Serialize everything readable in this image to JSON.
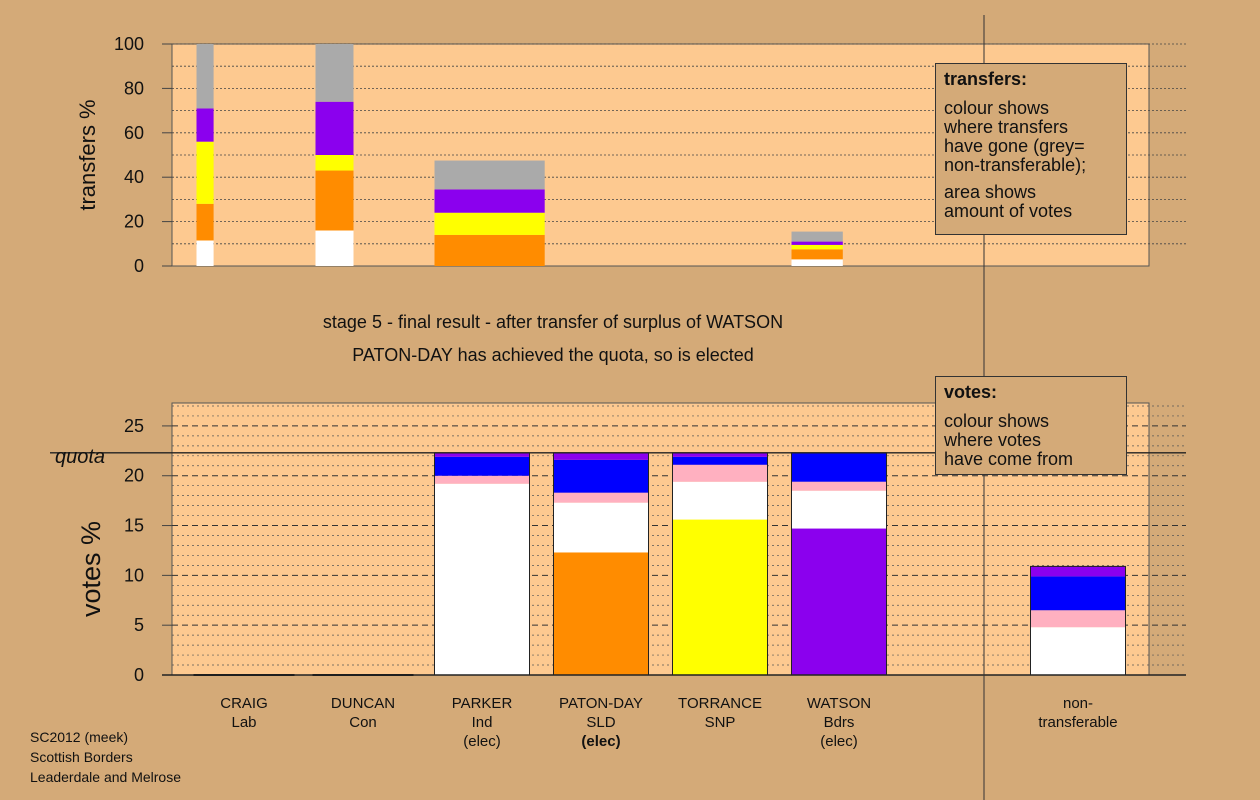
{
  "header": {
    "stage_line": "stage 5 - final result - after transfer of surplus of WATSON",
    "elected_line": "PATON-DAY has achieved the quota, so is elected"
  },
  "legend_transfers": {
    "title": "transfers:",
    "lines": [
      "colour shows",
      "where transfers",
      "have gone (grey=",
      "non-transferable);"
    ],
    "lines2": [
      "area shows",
      "amount of votes"
    ]
  },
  "legend_votes": {
    "title": "votes:",
    "lines": [
      "colour shows",
      "where votes",
      "have come from"
    ]
  },
  "footer": {
    "lines": [
      "SC2012 (meek)",
      "Scottish Borders",
      "Leaderdale and Melrose"
    ]
  },
  "colors": {
    "background": "#d4aa78",
    "plot_bg": "#fdc990",
    "white": "#ffffff",
    "orange": "#ff8c00",
    "yellow": "#ffff00",
    "purple": "#8b00ee",
    "grey": "#aaaaaa",
    "pink": "#ffb0c0",
    "blue": "#0000ff"
  },
  "chart_data": [
    {
      "type": "bar",
      "chart": "transfers",
      "ylabel": "transfers %",
      "ylim": [
        0,
        100
      ],
      "yticks": [
        0,
        20,
        40,
        60,
        80,
        100
      ],
      "bars": [
        {
          "slot": 0,
          "width": 0.18,
          "segments": [
            {
              "color": "white",
              "from": 0,
              "to": 11.5
            },
            {
              "color": "orange",
              "from": 11.5,
              "to": 28
            },
            {
              "color": "yellow",
              "from": 28,
              "to": 56
            },
            {
              "color": "purple",
              "from": 56,
              "to": 71
            },
            {
              "color": "grey",
              "from": 71,
              "to": 100
            }
          ]
        },
        {
          "slot": 1,
          "width": 0.4,
          "segments": [
            {
              "color": "white",
              "from": 0,
              "to": 16
            },
            {
              "color": "orange",
              "from": 16,
              "to": 43
            },
            {
              "color": "yellow",
              "from": 43,
              "to": 50
            },
            {
              "color": "purple",
              "from": 50,
              "to": 74
            },
            {
              "color": "grey",
              "from": 74,
              "to": 100
            }
          ]
        },
        {
          "slot": 2,
          "width": 1.16,
          "segments": [
            {
              "color": "orange",
              "from": 0,
              "to": 14
            },
            {
              "color": "yellow",
              "from": 14,
              "to": 24
            },
            {
              "color": "purple",
              "from": 24,
              "to": 34.5
            },
            {
              "color": "grey",
              "from": 34.5,
              "to": 47.5
            }
          ]
        },
        {
          "slot": 5,
          "width": 0.54,
          "segments": [
            {
              "color": "white",
              "from": 0,
              "to": 3
            },
            {
              "color": "orange",
              "from": 3,
              "to": 7.5
            },
            {
              "color": "yellow",
              "from": 7.5,
              "to": 9.5
            },
            {
              "color": "purple",
              "from": 9.5,
              "to": 11
            },
            {
              "color": "grey",
              "from": 11,
              "to": 15.5
            }
          ]
        }
      ]
    },
    {
      "type": "bar",
      "chart": "votes",
      "ylabel": "votes %",
      "ylim": [
        0,
        27.3
      ],
      "yticks": [
        0,
        5,
        10,
        15,
        20,
        25
      ],
      "quota": 22.3,
      "quota_label": "quota",
      "candidates": [
        {
          "name": "CRAIG",
          "party": "Lab",
          "status": "",
          "status_bold": false,
          "slot": 0,
          "segments": []
        },
        {
          "name": "DUNCAN",
          "party": "Con",
          "status": "",
          "status_bold": false,
          "slot": 1,
          "segments": []
        },
        {
          "name": "PARKER",
          "party": "Ind",
          "status": "(elec)",
          "status_bold": false,
          "slot": 2,
          "segments": [
            {
              "color": "white",
              "from": 0,
              "to": 19.2
            },
            {
              "color": "pink",
              "from": 19.2,
              "to": 20
            },
            {
              "color": "blue",
              "from": 20,
              "to": 21.9
            },
            {
              "color": "purple",
              "from": 21.9,
              "to": 22.3
            }
          ]
        },
        {
          "name": "PATON-DAY",
          "party": "SLD",
          "status": "(elec)",
          "status_bold": true,
          "slot": 3,
          "segments": [
            {
              "color": "orange",
              "from": 0,
              "to": 12.3
            },
            {
              "color": "white",
              "from": 12.3,
              "to": 17.3
            },
            {
              "color": "pink",
              "from": 17.3,
              "to": 18.3
            },
            {
              "color": "blue",
              "from": 18.3,
              "to": 21.6
            },
            {
              "color": "purple",
              "from": 21.6,
              "to": 22.3
            }
          ]
        },
        {
          "name": "TORRANCE",
          "party": "SNP",
          "status": "",
          "status_bold": false,
          "slot": 4,
          "segments": [
            {
              "color": "yellow",
              "from": 0,
              "to": 15.6
            },
            {
              "color": "white",
              "from": 15.6,
              "to": 19.4
            },
            {
              "color": "pink",
              "from": 19.4,
              "to": 21.1
            },
            {
              "color": "blue",
              "from": 21.1,
              "to": 21.9
            },
            {
              "color": "purple",
              "from": 21.9,
              "to": 22.3
            }
          ]
        },
        {
          "name": "WATSON",
          "party": "Bdrs",
          "status": "(elec)",
          "status_bold": false,
          "slot": 5,
          "segments": [
            {
              "color": "purple",
              "from": 0,
              "to": 14.7
            },
            {
              "color": "white",
              "from": 14.7,
              "to": 18.5
            },
            {
              "color": "pink",
              "from": 18.5,
              "to": 19.4
            },
            {
              "color": "blue",
              "from": 19.4,
              "to": 22.3
            }
          ]
        },
        {
          "name": "non-",
          "party": "transferable",
          "status": "",
          "status_bold": false,
          "slot": 7,
          "segments": [
            {
              "color": "white",
              "from": 0,
              "to": 4.8
            },
            {
              "color": "pink",
              "from": 4.8,
              "to": 6.5
            },
            {
              "color": "blue",
              "from": 6.5,
              "to": 9.9
            },
            {
              "color": "purple",
              "from": 9.9,
              "to": 10.9
            }
          ]
        }
      ]
    }
  ]
}
